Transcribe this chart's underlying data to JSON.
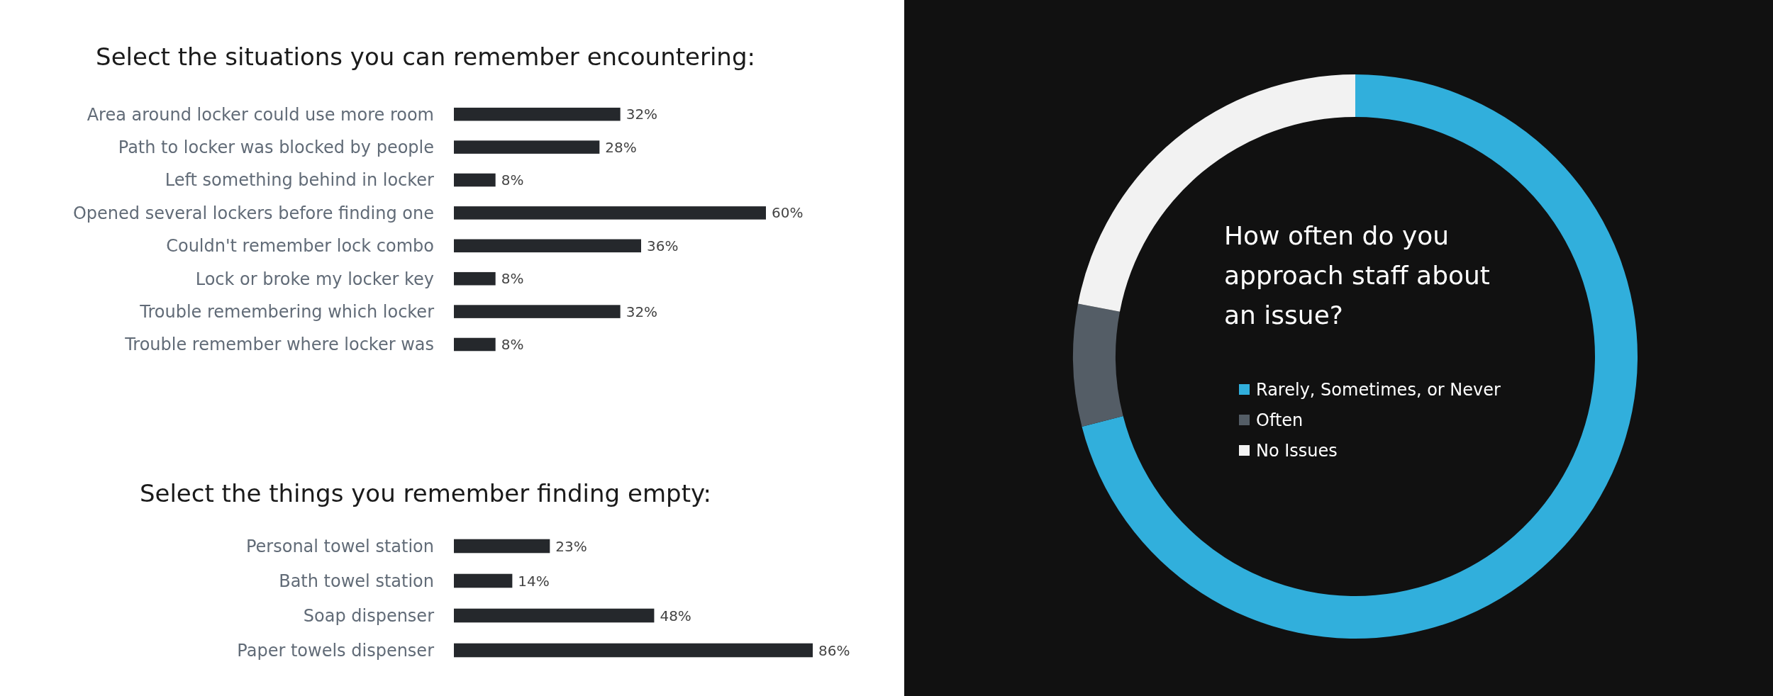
{
  "chart_data": [
    {
      "type": "bar",
      "orientation": "horizontal",
      "title": "Select the situations you can remember encountering:",
      "categories": [
        "Area around locker could use more room",
        "Path to locker was blocked by people",
        "Left something behind in locker",
        "Opened several lockers before finding one",
        "Couldn't remember lock combo",
        "Lock or broke my locker key",
        "Trouble remembering which locker ",
        "Trouble remember where locker was"
      ],
      "values": [
        32,
        28,
        8,
        60,
        36,
        8,
        32,
        8
      ],
      "value_labels": [
        "32%",
        "28%",
        "8%",
        "60%",
        "36%",
        "8%",
        "32%",
        "8%"
      ],
      "color": "#25282c"
    },
    {
      "type": "bar",
      "orientation": "horizontal",
      "title": "Select the things you remember finding empty:",
      "categories": [
        "Personal towel station",
        "Bath towel station",
        "Soap dispenser ",
        "Paper towels dispenser"
      ],
      "values": [
        23,
        14,
        48,
        86
      ],
      "value_labels": [
        "23%",
        "14%",
        "48%",
        "86%"
      ],
      "color": "#25282c"
    },
    {
      "type": "donut",
      "title": "How often do you approach staff about an issue?",
      "categories": [
        "Rarely, Sometimes, or Never",
        "Often",
        "No Issues"
      ],
      "values": [
        71,
        7,
        22
      ],
      "colors": [
        "#31afdc",
        "#545d66",
        "#f2f2f2"
      ],
      "legend": "center"
    }
  ]
}
